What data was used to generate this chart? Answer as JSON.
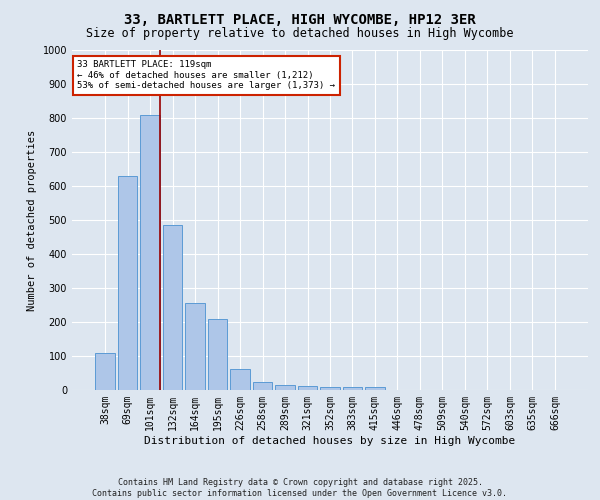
{
  "title": "33, BARTLETT PLACE, HIGH WYCOMBE, HP12 3ER",
  "subtitle": "Size of property relative to detached houses in High Wycombe",
  "xlabel": "Distribution of detached houses by size in High Wycombe",
  "ylabel": "Number of detached properties",
  "categories": [
    "38sqm",
    "69sqm",
    "101sqm",
    "132sqm",
    "164sqm",
    "195sqm",
    "226sqm",
    "258sqm",
    "289sqm",
    "321sqm",
    "352sqm",
    "383sqm",
    "415sqm",
    "446sqm",
    "478sqm",
    "509sqm",
    "540sqm",
    "572sqm",
    "603sqm",
    "635sqm",
    "666sqm"
  ],
  "values": [
    110,
    630,
    810,
    485,
    255,
    210,
    62,
    25,
    15,
    11,
    8,
    8,
    8,
    0,
    0,
    0,
    0,
    0,
    0,
    0,
    0
  ],
  "bar_color": "#aec6e8",
  "bar_edge_color": "#5b9bd5",
  "background_color": "#dde6f0",
  "grid_color": "#ffffff",
  "vline_color": "#990000",
  "vline_x_index": 2,
  "annotation_text": "33 BARTLETT PLACE: 119sqm\n← 46% of detached houses are smaller (1,212)\n53% of semi-detached houses are larger (1,373) →",
  "annotation_box_facecolor": "#ffffff",
  "annotation_box_edgecolor": "#cc2200",
  "ylim": [
    0,
    1000
  ],
  "yticks": [
    0,
    100,
    200,
    300,
    400,
    500,
    600,
    700,
    800,
    900,
    1000
  ],
  "footer_line1": "Contains HM Land Registry data © Crown copyright and database right 2025.",
  "footer_line2": "Contains public sector information licensed under the Open Government Licence v3.0.",
  "title_fontsize": 10,
  "subtitle_fontsize": 8.5,
  "xlabel_fontsize": 8,
  "ylabel_fontsize": 7.5,
  "tick_fontsize": 7,
  "annotation_fontsize": 6.5,
  "footer_fontsize": 6
}
